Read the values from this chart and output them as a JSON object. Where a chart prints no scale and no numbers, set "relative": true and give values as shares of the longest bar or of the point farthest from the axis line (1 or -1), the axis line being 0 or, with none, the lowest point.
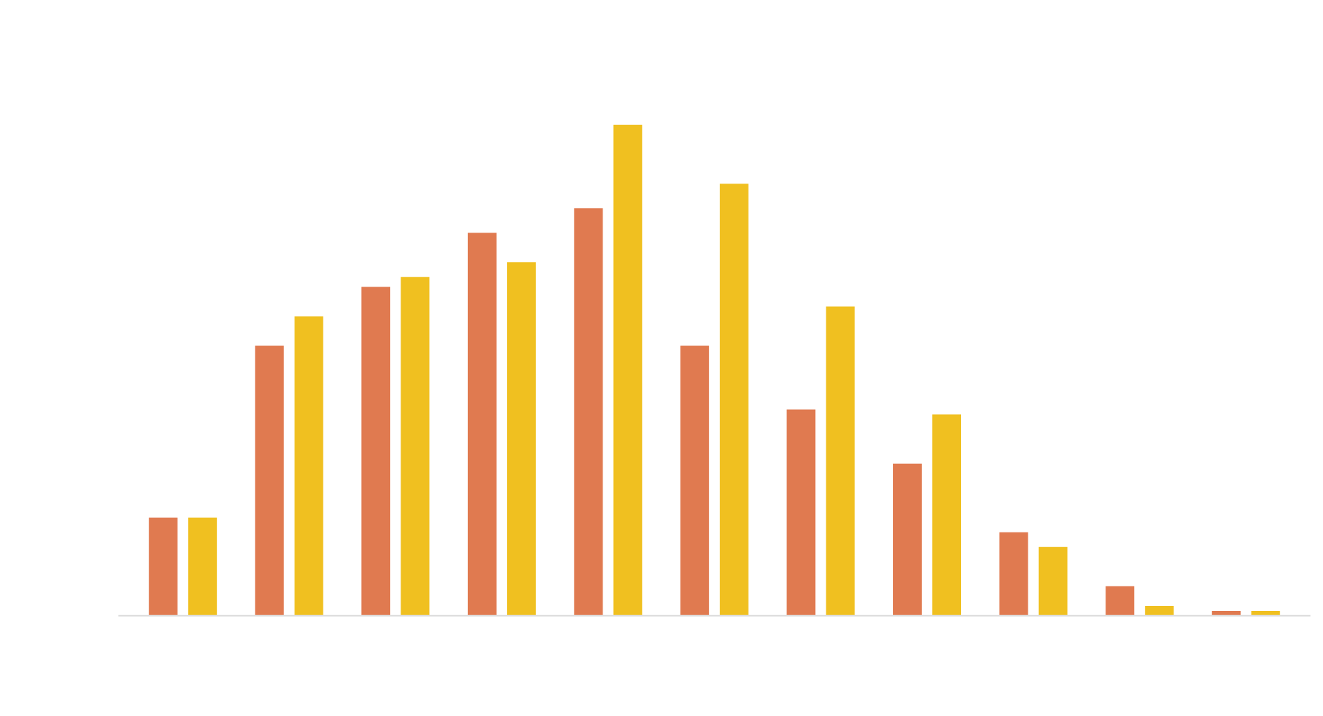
{
  "chart_data": {
    "type": "bar",
    "relative": true,
    "categories": [
      null,
      null,
      null,
      null,
      null,
      null,
      null,
      null,
      null,
      null,
      null
    ],
    "series": [
      {
        "color": "#e07a50",
        "values": [
          0.2,
          0.55,
          0.67,
          0.78,
          0.83,
          0.55,
          0.42,
          0.31,
          0.17,
          0.06,
          0.01
        ]
      },
      {
        "color": "#f0c020",
        "values": [
          0.2,
          0.61,
          0.69,
          0.72,
          1,
          0.88,
          0.63,
          0.41,
          0.14,
          0.02,
          0.01
        ]
      }
    ]
  }
}
